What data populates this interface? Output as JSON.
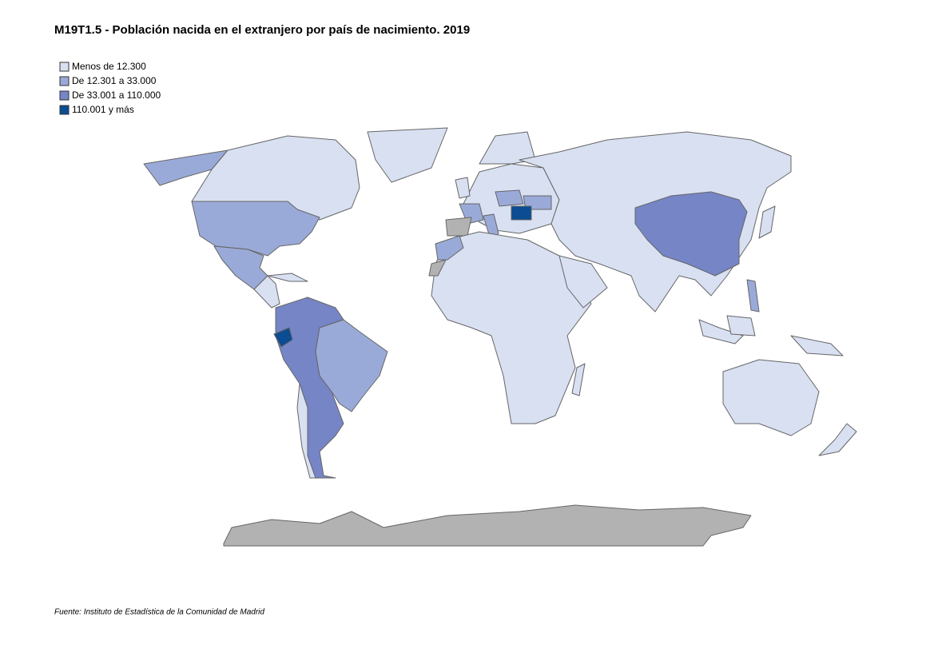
{
  "title": "M19T1.5 - Población nacida en el extranjero por país de nacimiento. 2019",
  "legend": [
    {
      "label": "Menos de 12.300",
      "color": "#d8e0f2"
    },
    {
      "label": "De 12.301 a 33.000",
      "color": "#9aaad8"
    },
    {
      "label": "De 33.001 a 110.000",
      "color": "#7585c6"
    },
    {
      "label": "110.001 y más",
      "color": "#0b4c92"
    }
  ],
  "source": "Fuente: Instituto de Estadística de la Comunidad de Madrid"
}
